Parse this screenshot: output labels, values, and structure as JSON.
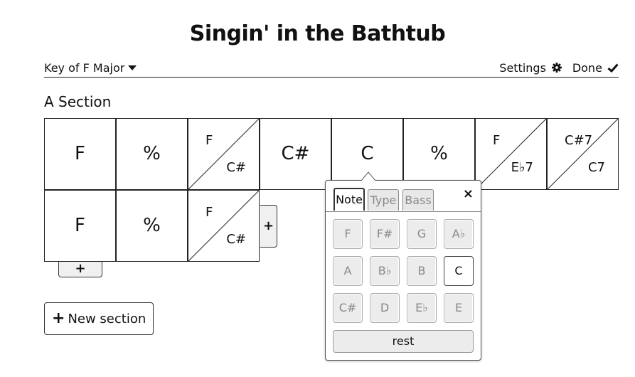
{
  "song": {
    "title": "Singin' in the Bathtub"
  },
  "toolbar": {
    "key_label": "Key of F Major",
    "settings_label": "Settings",
    "done_label": "Done"
  },
  "sections": [
    {
      "name": "A Section",
      "rows": [
        [
          {
            "type": "single",
            "chord": "F"
          },
          {
            "type": "single",
            "chord": "%"
          },
          {
            "type": "split",
            "top": "F",
            "bottom": "C#"
          },
          {
            "type": "single",
            "chord": "C#"
          },
          {
            "type": "single",
            "chord": "C"
          },
          {
            "type": "single",
            "chord": "%"
          },
          {
            "type": "split",
            "top": "F",
            "bottom": "E♭7"
          },
          {
            "type": "split",
            "top": "C#7",
            "bottom": "C7"
          }
        ],
        [
          {
            "type": "single",
            "chord": "F"
          },
          {
            "type": "single",
            "chord": "%"
          },
          {
            "type": "split",
            "top": "F",
            "bottom": "C#"
          }
        ]
      ]
    }
  ],
  "add_measure_label": "+",
  "add_row_label": "+",
  "new_section_label": "New section",
  "new_section_plus": "+",
  "chord_popup": {
    "close_label": "×",
    "tabs": [
      {
        "label": "Note",
        "active": true
      },
      {
        "label": "Type",
        "active": false
      },
      {
        "label": "Bass",
        "active": false
      }
    ],
    "notes": [
      [
        "F",
        "F#",
        "G",
        "A♭"
      ],
      [
        "A",
        "B♭",
        "B",
        "C"
      ],
      [
        "C#",
        "D",
        "E♭",
        "E"
      ]
    ],
    "selected_note": "C",
    "rest_label": "rest"
  },
  "icons": {
    "settings": "gear-icon",
    "done": "check-icon",
    "key": "caret-down-icon",
    "close": "close-icon"
  }
}
